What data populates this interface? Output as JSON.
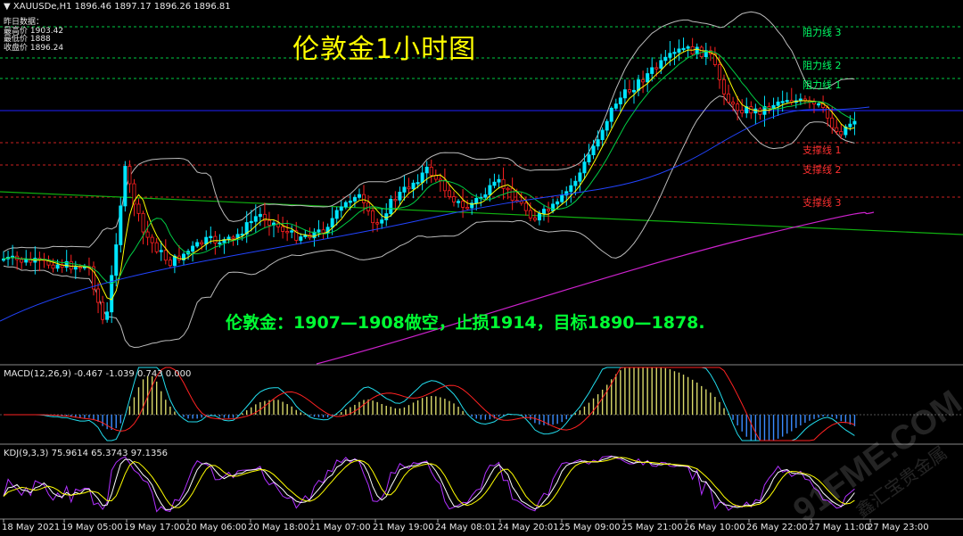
{
  "header": {
    "symbol": "XAUUSDe,H1",
    "prices": "1896.46 1897.17 1896.26 1896.81",
    "prev_title": "昨日数据：",
    "prev_high": "最高价 1903.42",
    "prev_low": "最低价 1888",
    "prev_close": "收盘价 1896.24"
  },
  "title": "伦敦金1小时图",
  "signal": "伦敦金：1907—1908做空，止损1914，目标1890—1878.",
  "levels": {
    "res3": "阻力线 3",
    "res2": "阻力线 2",
    "res1": "阻力线 1",
    "sup1": "支撑线 1",
    "sup2": "支撑线 2",
    "sup3": "支撑线 3"
  },
  "macd_label": "MACD(12,26,9) -0.467 -1.039 0.743 0.000",
  "kdj_label": "KDJ(9,3,3) 75.9614 65.3743 97.1356",
  "x_ticks": [
    "18 May 2021",
    "19 May 05:00",
    "19 May 17:00",
    "20 May 06:00",
    "20 May 18:00",
    "21 May 07:00",
    "21 May 19:00",
    "24 May 08:01",
    "24 May 20:01",
    "25 May 09:00",
    "25 May 21:00",
    "26 May 10:00",
    "26 May 22:00",
    "27 May 11:00",
    "27 May 23:00"
  ],
  "watermark": "91FME.COM",
  "watermark_sub": "鑫汇宝贵金属",
  "colors": {
    "bull": "#00e5ff",
    "bear": "#ff2020",
    "resistance": "#00cc44",
    "support": "#cc2020",
    "blue_line": "#2020ff",
    "ma_slow": "#2244ff",
    "ma_long": "#cc22cc",
    "trend": "#10b010",
    "bands": "#bbbbbb"
  },
  "chart_data": {
    "type": "candlestick",
    "symbol": "XAUUSDe",
    "timeframe": "H1",
    "x": [
      "18 May 2021",
      "19 May 05:00",
      "19 May 17:00",
      "20 May 06:00",
      "20 May 18:00",
      "21 May 07:00",
      "21 May 19:00",
      "24 May 08:01",
      "24 May 20:01",
      "25 May 09:00",
      "25 May 21:00",
      "26 May 10:00",
      "26 May 22:00",
      "27 May 11:00",
      "27 May 23:00"
    ],
    "close": [
      1867,
      1872,
      1878,
      1873,
      1878,
      1881,
      1876,
      1887,
      1881,
      1890,
      1908,
      1898,
      1897,
      1893,
      1896.81
    ],
    "last": {
      "open": 1896.46,
      "high": 1897.17,
      "low": 1896.26,
      "close": 1896.81
    },
    "levels": {
      "res3": 1911,
      "res2": 1906,
      "res1": 1903,
      "sup1": 1887,
      "sup2": 1883,
      "sup3": 1877
    }
  }
}
